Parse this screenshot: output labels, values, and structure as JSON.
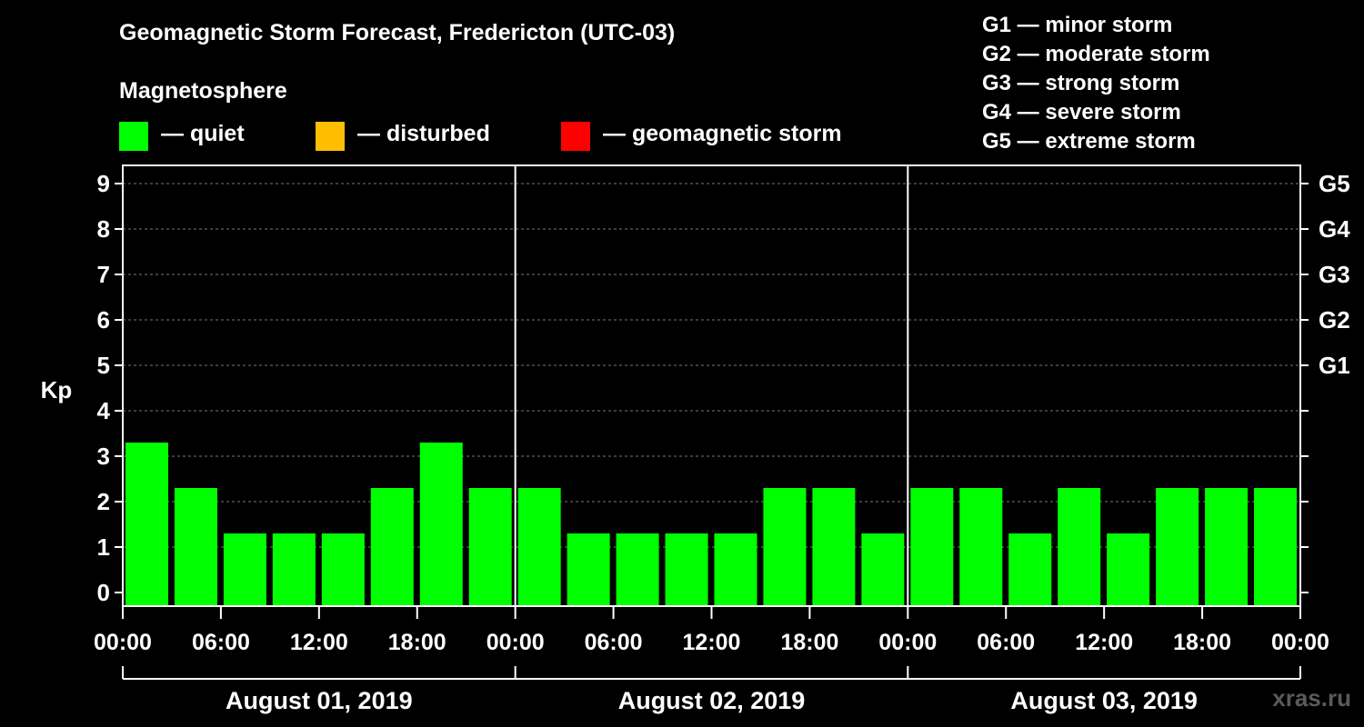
{
  "chart_data": {
    "type": "bar",
    "title": "Geomagnetic Storm Forecast, Fredericton (UTC-03)",
    "ylabel": "Kp",
    "ylim": [
      0,
      9
    ],
    "y_ticks": [
      "0",
      "1",
      "2",
      "3",
      "4",
      "5",
      "6",
      "7",
      "8",
      "9"
    ],
    "storm_levels": [
      {
        "label": "G1",
        "kp": 5
      },
      {
        "label": "G2",
        "kp": 6
      },
      {
        "label": "G3",
        "kp": 7
      },
      {
        "label": "G4",
        "kp": 8
      },
      {
        "label": "G5",
        "kp": 9
      }
    ],
    "days": [
      {
        "date": "August 01, 2019",
        "values": [
          3,
          2,
          1,
          1,
          1,
          2,
          3,
          2
        ]
      },
      {
        "date": "August 02, 2019",
        "values": [
          2,
          1,
          1,
          1,
          1,
          2,
          2,
          1
        ]
      },
      {
        "date": "August 03, 2019",
        "values": [
          2,
          2,
          1,
          2,
          1,
          2,
          2,
          2
        ]
      }
    ],
    "time_ticks": [
      "00:00",
      "06:00",
      "12:00",
      "18:00",
      "00:00",
      "06:00",
      "12:00",
      "18:00",
      "00:00",
      "06:00",
      "12:00",
      "18:00",
      "00:00"
    ],
    "bar_color": "#00ff00"
  },
  "legend": {
    "heading": "Magnetosphere",
    "items": [
      {
        "label": "— quiet",
        "color": "#00ff00"
      },
      {
        "label": "— disturbed",
        "color": "#ffbf00"
      },
      {
        "label": "— geomagnetic storm",
        "color": "#ff0000"
      }
    ]
  },
  "g_scale": [
    "G1 — minor storm",
    "G2 — moderate storm",
    "G3 — strong storm",
    "G4 — severe storm",
    "G5 — extreme storm"
  ],
  "watermark": "xras.ru"
}
